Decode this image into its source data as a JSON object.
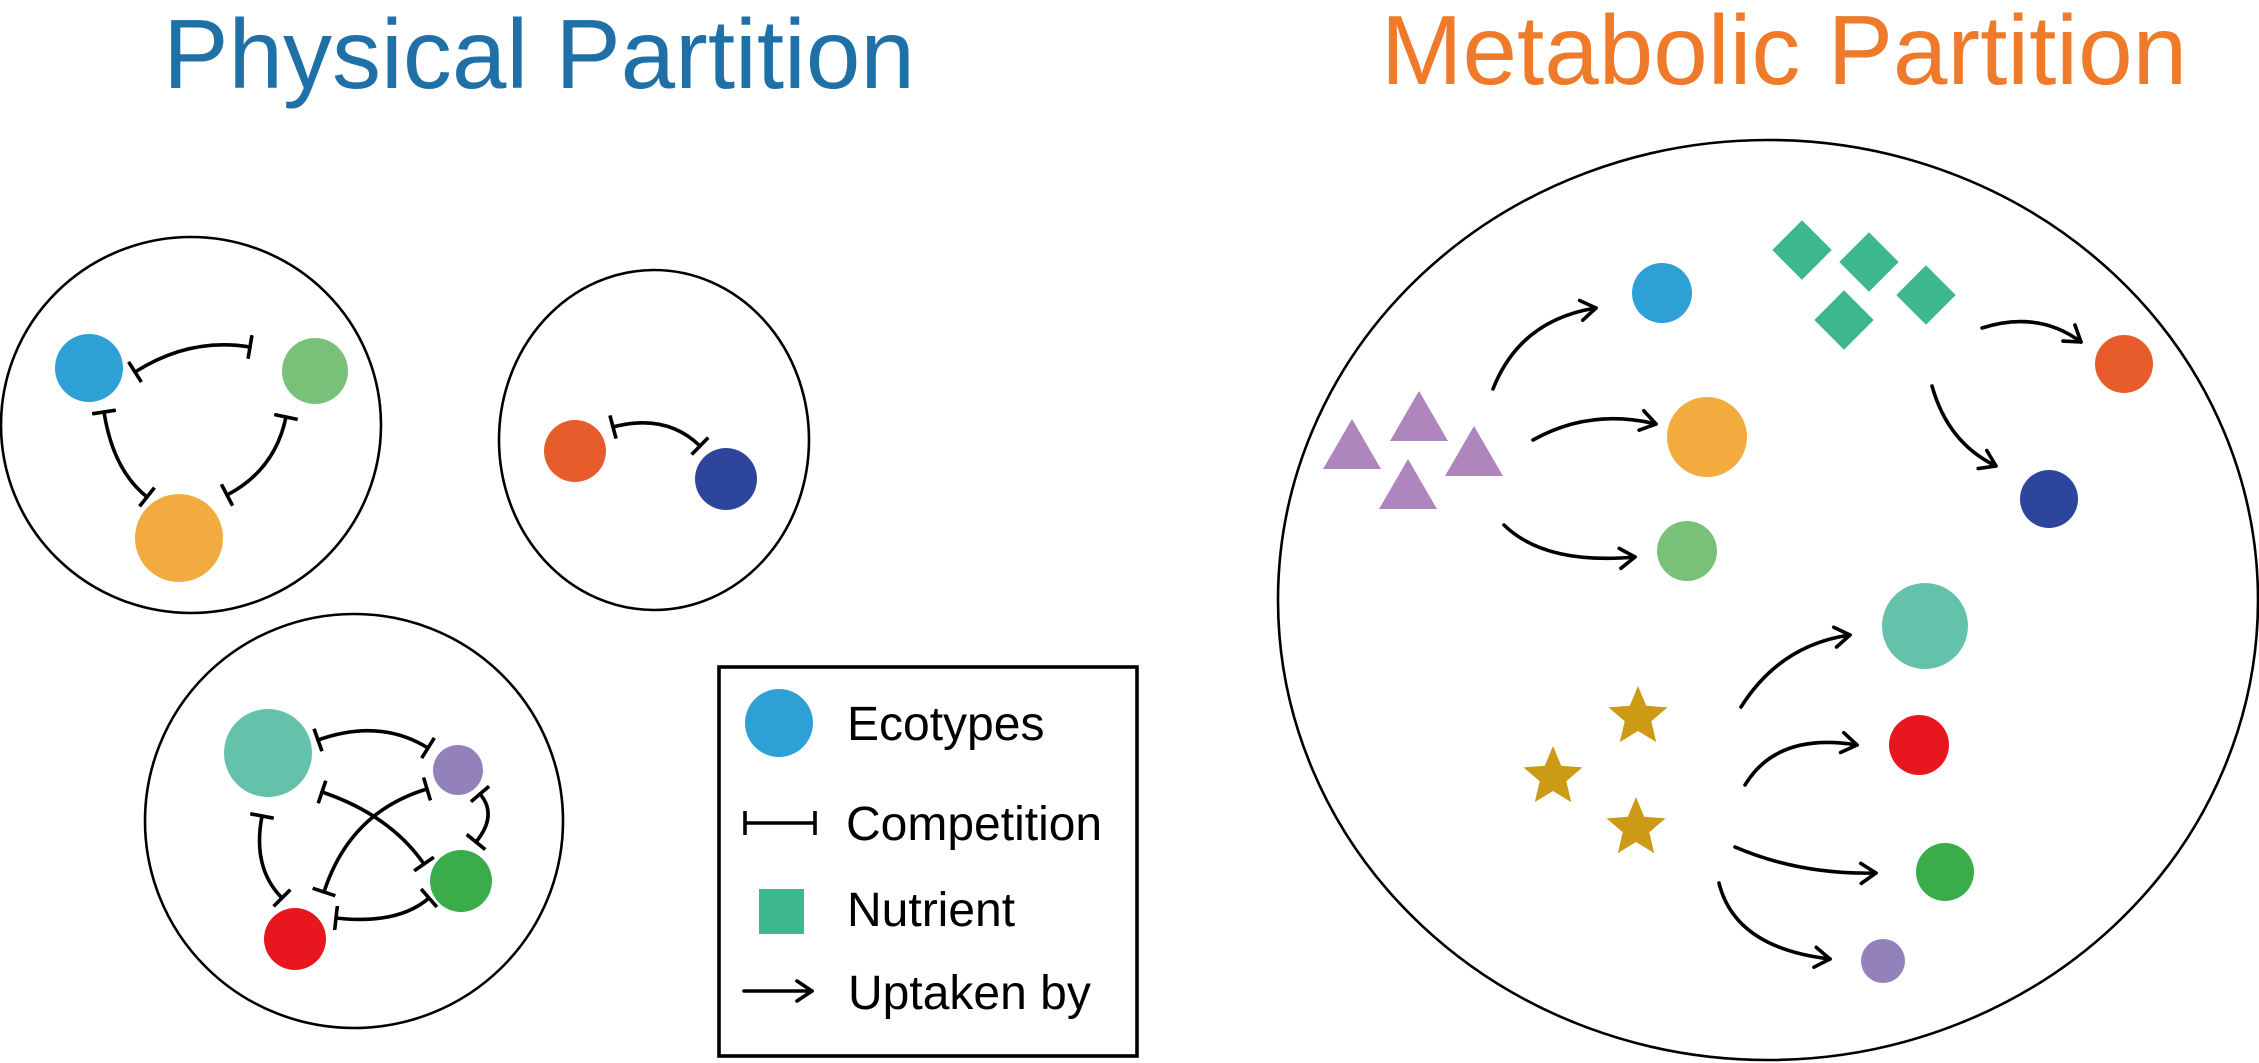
{
  "titles": {
    "physical": "Physical Partition",
    "metabolic": "Metabolic Partition"
  },
  "legend": {
    "ecotypes": "Ecotypes",
    "competition": "Competition",
    "nutrient": "Nutrient",
    "uptaken_by": "Uptaken by"
  },
  "colors": {
    "physical_title": "#2070A8",
    "metabolic_title": "#EE7A2A",
    "blue": "#2DA0D6",
    "light_green": "#79C178",
    "orange": "#F2AB3E",
    "red_orange": "#E65C2A",
    "navy": "#2D469B",
    "teal": "#64C2AB",
    "lavender": "#9381BC",
    "green": "#3AAC4A",
    "red": "#E8171F",
    "nutrient_green": "#3DB88C",
    "triangle_purple": "#AE85BC",
    "star_gold": "#CC9A15"
  }
}
